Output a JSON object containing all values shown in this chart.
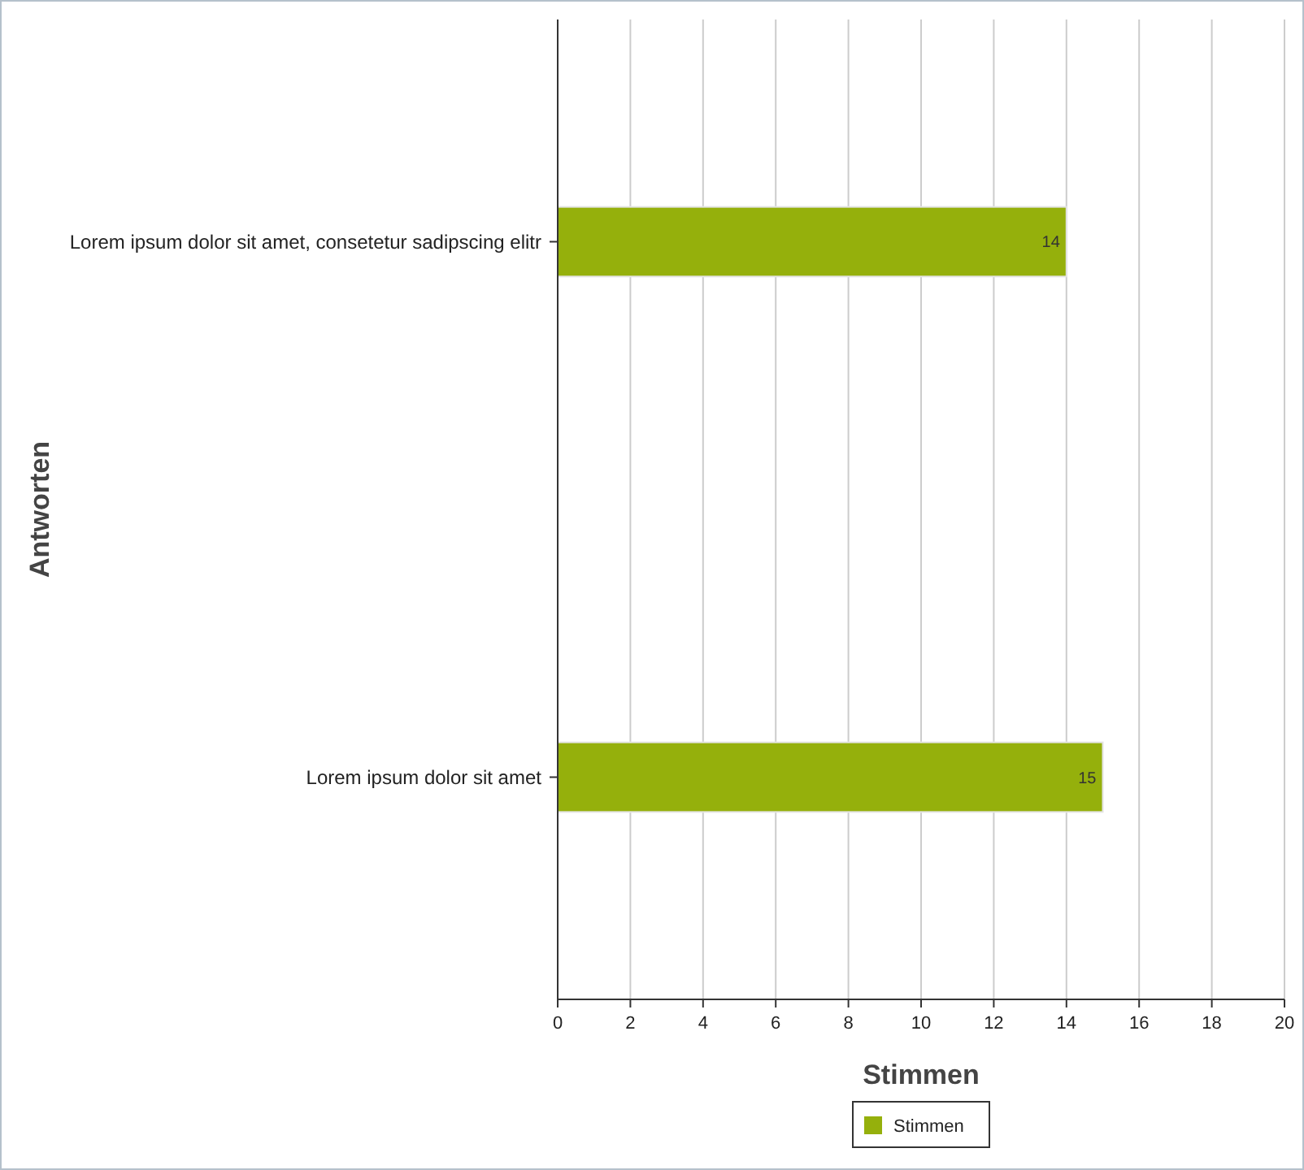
{
  "chart_data": {
    "type": "bar",
    "orientation": "horizontal",
    "xlabel": "Stimmen",
    "ylabel": "Antworten",
    "categories": [
      "Lorem ipsum dolor sit amet, consetetur sadipscing elitr",
      "Lorem ipsum dolor sit amet"
    ],
    "series": [
      {
        "name": "Stimmen",
        "color": "#95b00c",
        "values": [
          14,
          15
        ]
      }
    ],
    "xlim": [
      0,
      20
    ],
    "xticks": [
      0,
      2,
      4,
      6,
      8,
      10,
      12,
      14,
      16,
      18,
      20
    ],
    "grid": "x",
    "legend": "bottom",
    "data_labels": true
  }
}
